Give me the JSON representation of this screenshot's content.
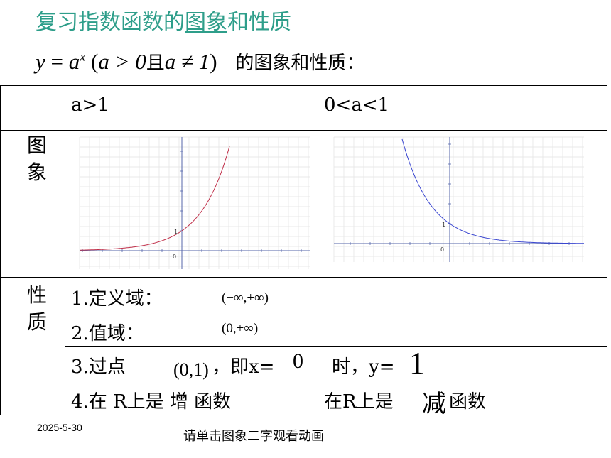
{
  "title": {
    "prefix": "复习指数函数的",
    "link": "图象",
    "suffix": "和性质"
  },
  "formula": {
    "y": "y",
    "eq": " = ",
    "a": "a",
    "exp": "x",
    "open": " (",
    "cond1": "a > 0",
    "and": "且",
    "cond2": "a ≠ 1",
    "close": ")",
    "tail": "的图象和性质："
  },
  "table": {
    "col_a_gt_1": "a>1",
    "col_0_lt_a_lt_1": "0<a<1",
    "row_graph_label": [
      "图",
      "象"
    ],
    "row_prop_label": [
      "性",
      "质"
    ],
    "domain": {
      "label": "1.定义域：",
      "value": "(−∞,+∞)"
    },
    "range": {
      "label": "2.值域：",
      "value": "(0,+∞)"
    },
    "point": {
      "label": "3.过点",
      "coord": "(0,1)",
      "mid": "，即x=",
      "x": "0",
      "when": "时，y=",
      "y": "1"
    },
    "mono": {
      "left": "4.在  R上是  增  函数",
      "right_prefix": "在R上是",
      "right_word": "减",
      "right_suffix": " 函数"
    }
  },
  "graph_left": {
    "function": "a^x, a>1",
    "curve_color": "#C0304A",
    "axis_labels": {
      "one": "1",
      "zero": "0"
    }
  },
  "graph_right": {
    "function": "a^x, 0<a<1",
    "curve_color": "#3A46D0",
    "axis_labels": {
      "one": "1",
      "zero": "0"
    }
  },
  "footer": {
    "date": "2025-5-30",
    "caption": "请单击图象二字观看动画"
  }
}
